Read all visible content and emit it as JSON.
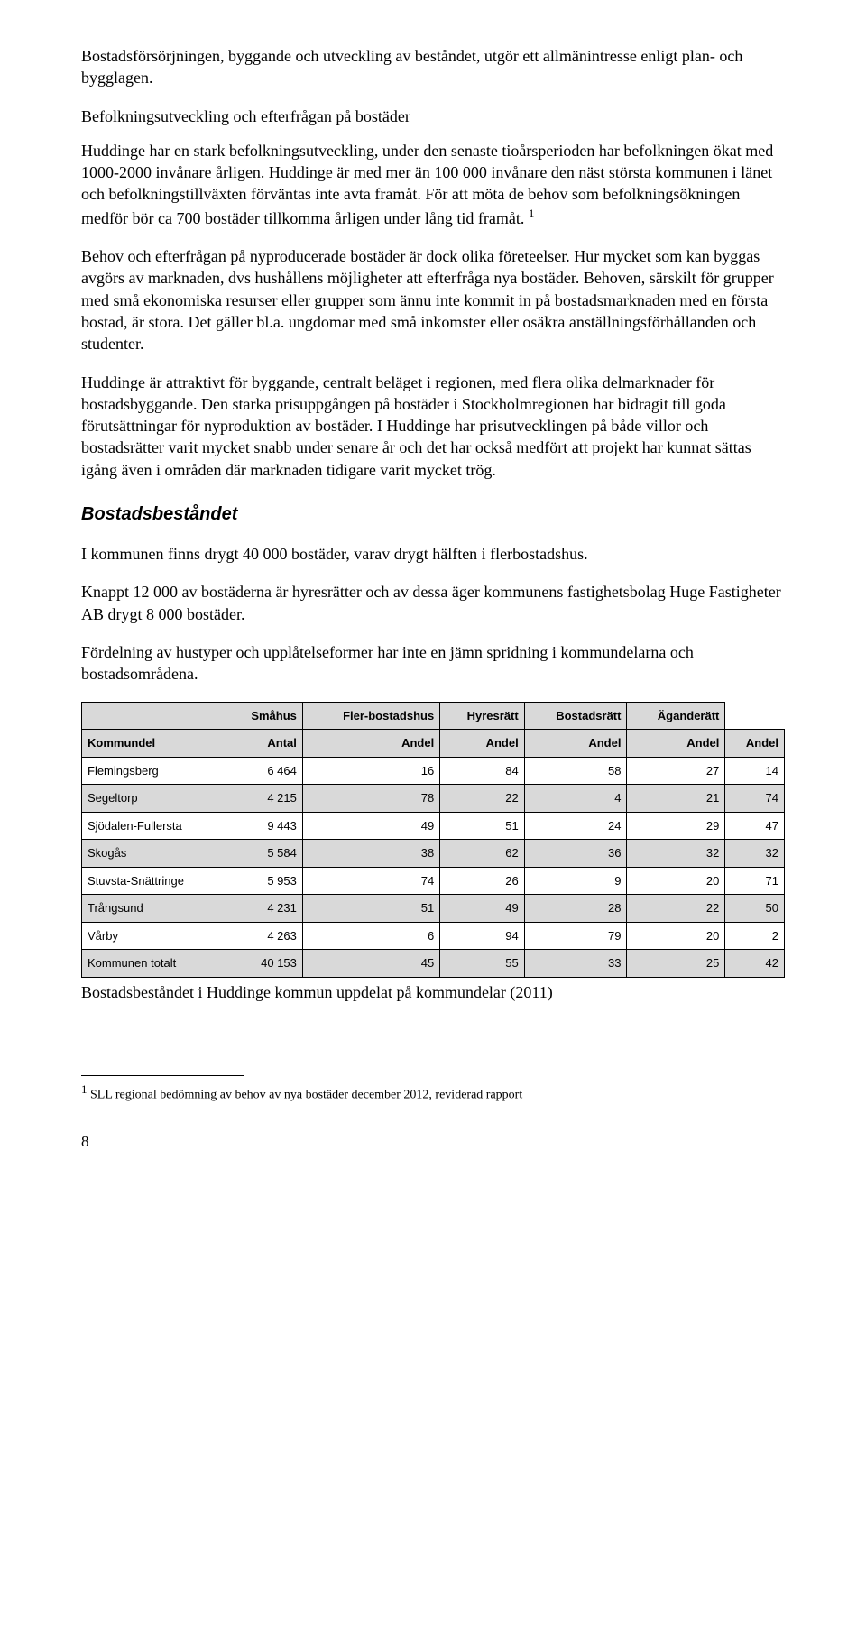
{
  "p1": "Bostadsförsörjningen, byggande och utveckling av beståndet, utgör ett allmänintresse enligt plan- och bygglagen.",
  "h1": "Befolkningsutveckling och efterfrågan på bostäder",
  "p2a": "Huddinge har en stark befolkningsutveckling, under den senaste tioårsperioden har befolkningen ökat med 1000-2000 invånare årligen. Huddinge är med mer än 100 000 invånare den näst största kommunen i länet och befolkningstillväxten förväntas inte avta framåt. För att möta de behov som befolkningsökningen medför bör ca 700 bostäder tillkomma årligen under lång tid framåt. ",
  "p2sup": "1",
  "p3": "Behov och efterfrågan på nyproducerade bostäder är dock olika företeelser. Hur mycket som kan byggas avgörs av marknaden, dvs hushållens möjligheter att efterfråga nya bostäder. Behoven, särskilt för grupper med små ekonomiska resurser eller grupper som ännu inte kommit in på bostadsmarknaden med en första bostad, är stora. Det gäller bl.a. ungdomar med små inkomster eller osäkra anställningsförhållanden och studenter.",
  "p4": "Huddinge är attraktivt för byggande, centralt beläget i regionen, med flera olika delmarknader för bostadsbyggande. Den starka prisuppgången på bostäder i Stockholmregionen har bidragit till goda förutsättningar för nyproduktion av bostäder. I Huddinge har prisutvecklingen på både villor och bostadsrätter varit mycket snabb under senare år och det har också medfört att projekt har kunnat sättas igång även i områden där marknaden tidigare varit mycket trög.",
  "h2": "Bostadsbeståndet",
  "p5": "I kommunen finns drygt 40 000 bostäder, varav drygt hälften i flerbostadshus.",
  "p6": "Knappt 12 000 av bostäderna är hyresrätter och av dessa äger kommunens fastighetsbolag Huge Fastigheter AB drygt 8 000 bostäder.",
  "p7": "Fördelning av hustyper och upplåtelseformer har inte en jämn spridning i kommundelarna och bostadsområdena.",
  "table": {
    "header1": [
      "",
      "Småhus",
      "Fler-bostadshus",
      "Hyresrätt",
      "Bostadsrätt",
      "Äganderätt"
    ],
    "header2": [
      "Kommundel",
      "Antal",
      "Andel",
      "Andel",
      "Andel",
      "Andel",
      "Andel"
    ],
    "rows": [
      [
        "Flemingsberg",
        "6 464",
        "16",
        "84",
        "58",
        "27",
        "14"
      ],
      [
        "Segeltorp",
        "4 215",
        "78",
        "22",
        "4",
        "21",
        "74"
      ],
      [
        "Sjödalen-Fullersta",
        "9 443",
        "49",
        "51",
        "24",
        "29",
        "47"
      ],
      [
        "Skogås",
        "5 584",
        "38",
        "62",
        "36",
        "32",
        "32"
      ],
      [
        "Stuvsta-Snättringe",
        "5 953",
        "74",
        "26",
        "9",
        "20",
        "71"
      ],
      [
        "Trångsund",
        "4 231",
        "51",
        "49",
        "28",
        "22",
        "50"
      ],
      [
        "Vårby",
        "4 263",
        "6",
        "94",
        "79",
        "20",
        "2"
      ]
    ],
    "total": [
      "Kommunen totalt",
      "40 153",
      "45",
      "55",
      "33",
      "25",
      "42"
    ]
  },
  "caption": "Bostadsbeståndet i Huddinge kommun uppdelat på kommundelar (2011)",
  "footnote_marker": "1",
  "footnote": " SLL regional bedömning av behov av nya bostäder december 2012, reviderad rapport",
  "page_number": "8"
}
